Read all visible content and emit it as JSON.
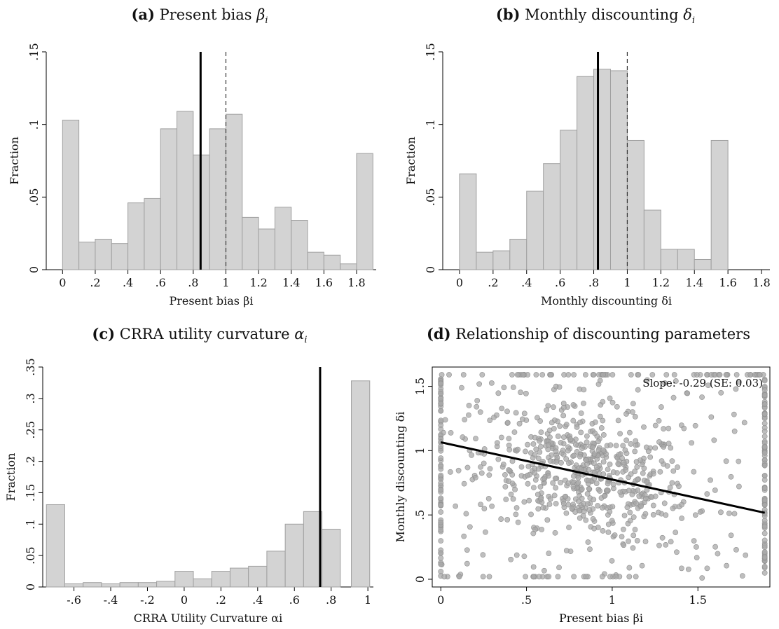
{
  "panels": {
    "a": {
      "letter": "(a)",
      "title_text": "Present bias ",
      "symbol": "β",
      "sub": "i"
    },
    "b": {
      "letter": "(b)",
      "title_text": "Monthly discounting ",
      "symbol": "δ",
      "sub": "i"
    },
    "c": {
      "letter": "(c)",
      "title_text": "CRRA utility curvature ",
      "symbol": "α",
      "sub": "i"
    },
    "d": {
      "letter": "(d)",
      "title_text": "Relationship of discounting parameters",
      "symbol": "",
      "sub": ""
    }
  },
  "colors": {
    "bar_fill": "#d3d3d3",
    "bar_stroke": "#a0a0a0",
    "point": "#a8a8a8",
    "line": "#000000"
  },
  "chart_data": [
    {
      "type": "bar",
      "id": "a",
      "xlabel": "Present bias βi",
      "ylabel": "Fraction",
      "xlim": [
        -0.1,
        1.92
      ],
      "ylim": [
        0,
        0.15
      ],
      "xticks": [
        0,
        0.2,
        0.4,
        0.6,
        0.8,
        1,
        1.2,
        1.4,
        1.6,
        1.8
      ],
      "xtick_labels": [
        "0",
        ".2",
        ".4",
        ".6",
        ".8",
        "1",
        "1.2",
        "1.4",
        "1.6",
        "1.8"
      ],
      "yticks": [
        0,
        0.05,
        0.1,
        0.15
      ],
      "ytick_labels": [
        "0",
        ".05",
        ".1",
        ".15"
      ],
      "bin_width": 0.1,
      "bin_starts": [
        0,
        0.1,
        0.2,
        0.3,
        0.4,
        0.5,
        0.6,
        0.7,
        0.8,
        0.9,
        1.0,
        1.1,
        1.2,
        1.3,
        1.4,
        1.5,
        1.6,
        1.7,
        1.8
      ],
      "values": [
        0.103,
        0.019,
        0.021,
        0.018,
        0.046,
        0.049,
        0.097,
        0.109,
        0.079,
        0.097,
        0.107,
        0.036,
        0.028,
        0.043,
        0.034,
        0.012,
        0.01,
        0.004,
        0.08
      ],
      "mean_line": 0.845,
      "reference_line": 1.0
    },
    {
      "type": "bar",
      "id": "b",
      "xlabel": "Monthly discounting δi",
      "ylabel": "Fraction",
      "xlim": [
        -0.1,
        1.85
      ],
      "ylim": [
        0,
        0.15
      ],
      "xticks": [
        0,
        0.2,
        0.4,
        0.6,
        0.8,
        1,
        1.2,
        1.4,
        1.6,
        1.8
      ],
      "xtick_labels": [
        "0",
        ".2",
        ".4",
        ".6",
        ".8",
        "1",
        "1.2",
        "1.4",
        "1.6",
        "1.8"
      ],
      "yticks": [
        0,
        0.05,
        0.1,
        0.15
      ],
      "ytick_labels": [
        "0",
        ".05",
        ".1",
        ".15"
      ],
      "bin_width": 0.1,
      "bin_starts": [
        0,
        0.1,
        0.2,
        0.3,
        0.4,
        0.5,
        0.6,
        0.7,
        0.8,
        0.9,
        1.0,
        1.1,
        1.2,
        1.3,
        1.4,
        1.5
      ],
      "values": [
        0.066,
        0.012,
        0.013,
        0.021,
        0.054,
        0.073,
        0.096,
        0.133,
        0.138,
        0.137,
        0.089,
        0.041,
        0.014,
        0.014,
        0.007,
        0.089
      ],
      "mean_line": 0.825,
      "reference_line": 1.0
    },
    {
      "type": "bar",
      "id": "c",
      "xlabel": "CRRA Utility Curvature αi",
      "ylabel": "Fraction",
      "xlim": [
        -0.77,
        1.03
      ],
      "ylim": [
        0,
        0.35
      ],
      "xticks": [
        -0.6,
        -0.4,
        -0.2,
        0,
        0.2,
        0.4,
        0.6,
        0.8,
        1
      ],
      "xtick_labels": [
        "-.6",
        "-.4",
        "-.2",
        "0",
        ".2",
        ".4",
        ".6",
        ".8",
        "1"
      ],
      "yticks": [
        0,
        0.05,
        0.1,
        0.15,
        0.2,
        0.25,
        0.3,
        0.35
      ],
      "ytick_labels": [
        "0",
        ".05",
        ".1",
        ".15",
        ".2",
        ".25",
        ".3",
        ".35"
      ],
      "bin_width": 0.1,
      "bin_starts": [
        -0.75,
        -0.65,
        -0.55,
        -0.45,
        -0.35,
        -0.25,
        -0.15,
        -0.05,
        0.05,
        0.15,
        0.25,
        0.35,
        0.45,
        0.55,
        0.65,
        0.75,
        0.85,
        0.91
      ],
      "values": [
        0.131,
        0.005,
        0.007,
        0.005,
        0.007,
        0.007,
        0.009,
        0.025,
        0.013,
        0.025,
        0.03,
        0.033,
        0.057,
        0.1,
        0.12,
        0.092,
        0.0,
        0.328
      ],
      "mean_line": 0.74,
      "reference_line": null
    },
    {
      "type": "scatter",
      "id": "d",
      "xlabel": "Present bias βi",
      "ylabel": "Monthly discounting δi",
      "annotation": "Slope: -0.29 (SE: 0.03)",
      "xlim": [
        -0.05,
        1.92
      ],
      "ylim": [
        -0.06,
        1.65
      ],
      "xticks": [
        0,
        0.5,
        1,
        1.5
      ],
      "xtick_labels": [
        "0",
        ".5",
        "1",
        "1.5"
      ],
      "yticks": [
        0,
        0.5,
        1,
        1.5
      ],
      "ytick_labels": [
        "0",
        ".5",
        "1",
        "1.5"
      ],
      "fit_line": {
        "x": [
          0,
          1.89
        ],
        "y": [
          1.065,
          0.517
        ]
      },
      "point_groups": [
        {
          "name": "cloud",
          "count": 520,
          "x_center": 0.85,
          "x_sd": 0.3,
          "y_center": 0.82,
          "y_sd": 0.24
        },
        {
          "name": "spread",
          "count": 160,
          "x_range": [
            0,
            1.8
          ],
          "y_range": [
            0.02,
            1.55
          ]
        },
        {
          "name": "top row",
          "count": 60,
          "y": 1.59,
          "x_range": [
            0,
            1.89
          ]
        },
        {
          "name": "right column",
          "count": 90,
          "x": 1.89,
          "y_range": [
            0,
            1.59
          ]
        },
        {
          "name": "left column",
          "count": 70,
          "x": 0.0,
          "y_range": [
            0,
            1.59
          ]
        },
        {
          "name": "bottom row",
          "count": 25,
          "y": 0.02,
          "x_range": [
            0,
            1.2
          ]
        }
      ]
    }
  ]
}
